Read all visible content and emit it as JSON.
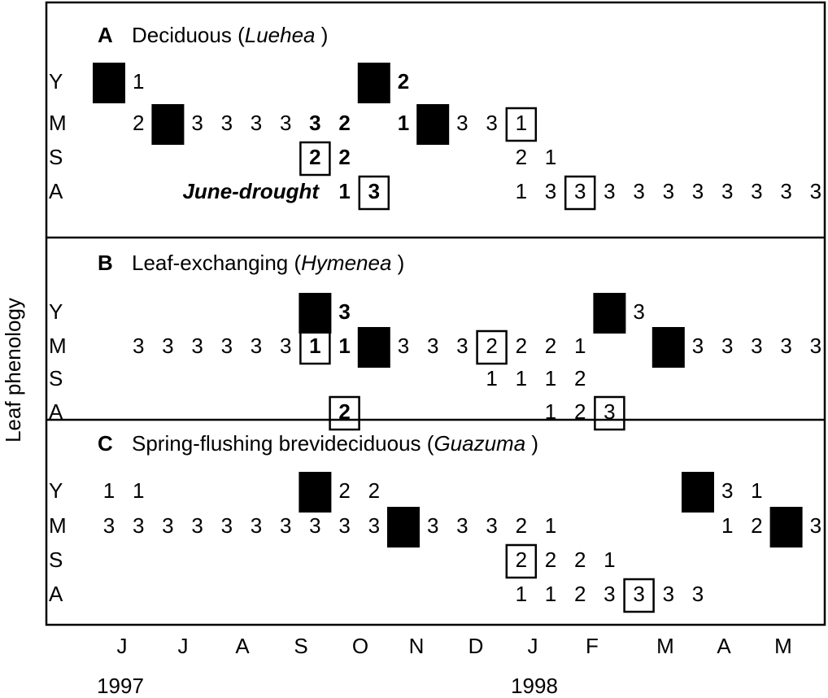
{
  "y_axis_label": "Leaf phenology",
  "months": [
    "J",
    "J",
    "A",
    "S",
    "O",
    "N",
    "D",
    "J",
    "F",
    "M",
    "A",
    "M"
  ],
  "years": [
    "1997",
    "1998"
  ],
  "panels": [
    {
      "letter": "A",
      "title": {
        "pre": "Deciduous (",
        "italic": "Luehea",
        "post": " )"
      },
      "annotation": "June-drought",
      "rows": [
        {
          "label": "Y",
          "cells": [
            {
              "col": 0,
              "black": true
            },
            {
              "col": 1,
              "text": "1"
            },
            {
              "col": 9,
              "black": true
            },
            {
              "col": 10,
              "text": "2",
              "bold": true
            }
          ]
        },
        {
          "label": "M",
          "cells": [
            {
              "col": 1,
              "text": "2"
            },
            {
              "col": 2,
              "black": true
            },
            {
              "col": 3,
              "text": "3"
            },
            {
              "col": 4,
              "text": "3"
            },
            {
              "col": 5,
              "text": "3"
            },
            {
              "col": 6,
              "text": "3"
            },
            {
              "col": 7,
              "text": "3",
              "bold": true
            },
            {
              "col": 8,
              "text": "2",
              "bold": true
            },
            {
              "col": 10,
              "text": "1",
              "bold": true
            },
            {
              "col": 11,
              "black": true
            },
            {
              "col": 12,
              "text": "3"
            },
            {
              "col": 13,
              "text": "3"
            },
            {
              "col": 14,
              "text": "1",
              "box": true
            }
          ]
        },
        {
          "label": "S",
          "cells": [
            {
              "col": 7,
              "text": "2",
              "bold": true,
              "box": true
            },
            {
              "col": 8,
              "text": "2",
              "bold": true
            },
            {
              "col": 14,
              "text": "2"
            },
            {
              "col": 15,
              "text": "1"
            }
          ]
        },
        {
          "label": "A",
          "cells": [
            {
              "col": 8,
              "text": "1",
              "bold": true
            },
            {
              "col": 9,
              "text": "3",
              "bold": true,
              "box": true
            },
            {
              "col": 14,
              "text": "1"
            },
            {
              "col": 15,
              "text": "3"
            },
            {
              "col": 16,
              "text": "3",
              "box": true
            },
            {
              "col": 17,
              "text": "3"
            },
            {
              "col": 18,
              "text": "3"
            },
            {
              "col": 19,
              "text": "3"
            },
            {
              "col": 20,
              "text": "3"
            },
            {
              "col": 21,
              "text": "3"
            },
            {
              "col": 22,
              "text": "3"
            },
            {
              "col": 23,
              "text": "3"
            },
            {
              "col": 24,
              "text": "3"
            }
          ]
        }
      ]
    },
    {
      "letter": "B",
      "title": {
        "pre": "Leaf-exchanging (",
        "italic": "Hymenea",
        "post": " )"
      },
      "rows": [
        {
          "label": "Y",
          "cells": [
            {
              "col": 7,
              "black": true
            },
            {
              "col": 8,
              "text": "3",
              "bold": true
            },
            {
              "col": 17,
              "black": true
            },
            {
              "col": 18,
              "text": "3"
            }
          ]
        },
        {
          "label": "M",
          "cells": [
            {
              "col": 1,
              "text": "3"
            },
            {
              "col": 2,
              "text": "3"
            },
            {
              "col": 3,
              "text": "3"
            },
            {
              "col": 4,
              "text": "3"
            },
            {
              "col": 5,
              "text": "3"
            },
            {
              "col": 6,
              "text": "3"
            },
            {
              "col": 7,
              "text": "1",
              "bold": true,
              "box": true
            },
            {
              "col": 8,
              "text": "1",
              "bold": true
            },
            {
              "col": 9,
              "black": true
            },
            {
              "col": 10,
              "text": "3"
            },
            {
              "col": 11,
              "text": "3"
            },
            {
              "col": 12,
              "text": "3"
            },
            {
              "col": 13,
              "text": "2",
              "box": true
            },
            {
              "col": 14,
              "text": "2"
            },
            {
              "col": 15,
              "text": "2"
            },
            {
              "col": 16,
              "text": "1"
            },
            {
              "col": 19,
              "black": true
            },
            {
              "col": 20,
              "text": "3"
            },
            {
              "col": 21,
              "text": "3"
            },
            {
              "col": 22,
              "text": "3"
            },
            {
              "col": 23,
              "text": "3"
            },
            {
              "col": 24,
              "text": "3"
            }
          ]
        },
        {
          "label": "S",
          "cells": [
            {
              "col": 13,
              "text": "1"
            },
            {
              "col": 14,
              "text": "1"
            },
            {
              "col": 15,
              "text": "1"
            },
            {
              "col": 16,
              "text": "2"
            }
          ]
        },
        {
          "label": "A",
          "cells": [
            {
              "col": 8,
              "text": "2",
              "bold": true,
              "box": true
            },
            {
              "col": 15,
              "text": "1"
            },
            {
              "col": 16,
              "text": "2"
            },
            {
              "col": 17,
              "text": "3",
              "box": true
            }
          ]
        }
      ]
    },
    {
      "letter": "C",
      "title": {
        "pre": "Spring-flushing brevideciduous  (",
        "italic": "Guazuma",
        "post": " )"
      },
      "rows": [
        {
          "label": "Y",
          "cells": [
            {
              "col": 0,
              "text": "1"
            },
            {
              "col": 1,
              "text": "1"
            },
            {
              "col": 7,
              "black": true
            },
            {
              "col": 8,
              "text": "2"
            },
            {
              "col": 9,
              "text": "2"
            },
            {
              "col": 20,
              "black": true
            },
            {
              "col": 21,
              "text": "3"
            },
            {
              "col": 22,
              "text": "1"
            }
          ]
        },
        {
          "label": "M",
          "cells": [
            {
              "col": 0,
              "text": "3"
            },
            {
              "col": 1,
              "text": "3"
            },
            {
              "col": 2,
              "text": "3"
            },
            {
              "col": 3,
              "text": "3"
            },
            {
              "col": 4,
              "text": "3"
            },
            {
              "col": 5,
              "text": "3"
            },
            {
              "col": 6,
              "text": "3"
            },
            {
              "col": 7,
              "text": "3"
            },
            {
              "col": 8,
              "text": "3"
            },
            {
              "col": 9,
              "text": "3"
            },
            {
              "col": 10,
              "black": true
            },
            {
              "col": 11,
              "text": "3"
            },
            {
              "col": 12,
              "text": "3"
            },
            {
              "col": 13,
              "text": "3"
            },
            {
              "col": 14,
              "text": "2"
            },
            {
              "col": 15,
              "text": "1"
            },
            {
              "col": 21,
              "text": "1"
            },
            {
              "col": 22,
              "text": "2"
            },
            {
              "col": 23,
              "black": true
            },
            {
              "col": 24,
              "text": "3"
            }
          ]
        },
        {
          "label": "S",
          "cells": [
            {
              "col": 14,
              "text": "2",
              "box": true
            },
            {
              "col": 15,
              "text": "2"
            },
            {
              "col": 16,
              "text": "2"
            },
            {
              "col": 17,
              "text": "1"
            }
          ]
        },
        {
          "label": "A",
          "cells": [
            {
              "col": 14,
              "text": "1"
            },
            {
              "col": 15,
              "text": "1"
            },
            {
              "col": 16,
              "text": "2"
            },
            {
              "col": 17,
              "text": "3"
            },
            {
              "col": 18,
              "text": "3",
              "box": true
            },
            {
              "col": 19,
              "text": "3"
            },
            {
              "col": 20,
              "text": "3"
            }
          ]
        }
      ]
    }
  ]
}
